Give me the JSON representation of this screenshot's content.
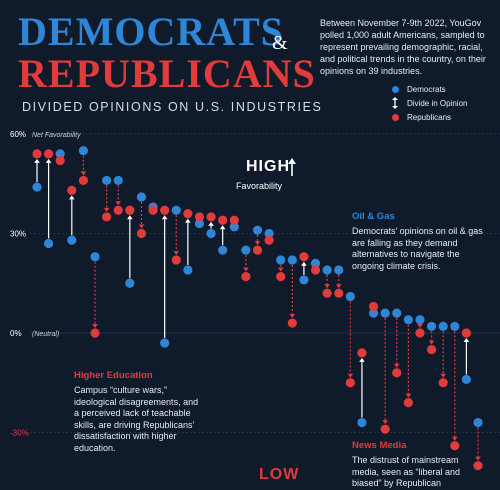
{
  "header": {
    "title_line1": "DEMOCRATS",
    "amp": "&",
    "title_line2": "REPUBLICANS",
    "subtitle": "DIVIDED OPINIONS ON U.S. INDUSTRIES",
    "intro": "Between November 7-9th 2022, YouGov polled 1,000 adult Americans, sampled to represent prevailing demographic, racial, and political trends in the country, on their opinions on 39 industries."
  },
  "legend": {
    "democrats": "Democrats",
    "divide": "Divide in Opinion",
    "republicans": "Republicans"
  },
  "hints": {
    "high": "HIGH",
    "high_sub": "Favorability",
    "low": "LOW"
  },
  "annotations": {
    "oil_title": "Oil & Gas",
    "oil_text": "Democrats’ opinions on oil & gas are falling as they demand alternatives to navigate the ongoing climate crisis.",
    "higher_title": "Higher Education",
    "higher_text": "Campus “culture wars,” ideological disagreements, and a perceived lack of teachable skills, are driving Republicans’ dissatisfaction with higher education.",
    "news_title": "News Media",
    "news_text": "The distrust of mainstream media, seen as “liberal and biased” by Republican"
  },
  "colors": {
    "background": "#0f1a2b",
    "democrats": "#2f86d6",
    "republicans": "#e23b3b",
    "grid": "#2a3850",
    "text": "#ffffff"
  },
  "chart_data": {
    "type": "scatter",
    "ylabel": "Net Favorability",
    "ylim": [
      -34,
      60
    ],
    "y_ticks": [
      {
        "value": 60,
        "label": "60%"
      },
      {
        "value": 30,
        "label": "30%"
      },
      {
        "value": 0,
        "label": "0%"
      },
      {
        "value": -30,
        "label": "-30%"
      }
    ],
    "zero_label": "(Neutral)",
    "series": [
      {
        "name": "Democrats",
        "values": [
          44,
          27,
          54,
          28,
          55,
          23,
          46,
          46,
          15,
          41,
          38,
          -3,
          37,
          19,
          33,
          30,
          25,
          32,
          25,
          31,
          30,
          22,
          22,
          16,
          21,
          19,
          19,
          11,
          -27,
          6,
          6,
          6,
          4,
          4,
          2,
          2,
          2,
          -14,
          -27
        ]
      },
      {
        "name": "Republicans",
        "values": [
          54,
          54,
          52,
          43,
          46,
          0,
          35,
          37,
          37,
          30,
          37,
          37,
          22,
          36,
          35,
          35,
          34,
          34,
          17,
          25,
          28,
          17,
          3,
          23,
          19,
          12,
          12,
          -15,
          -6,
          8,
          -29,
          -12,
          -21,
          0,
          -5,
          -15,
          -34,
          0,
          -40
        ]
      }
    ]
  }
}
